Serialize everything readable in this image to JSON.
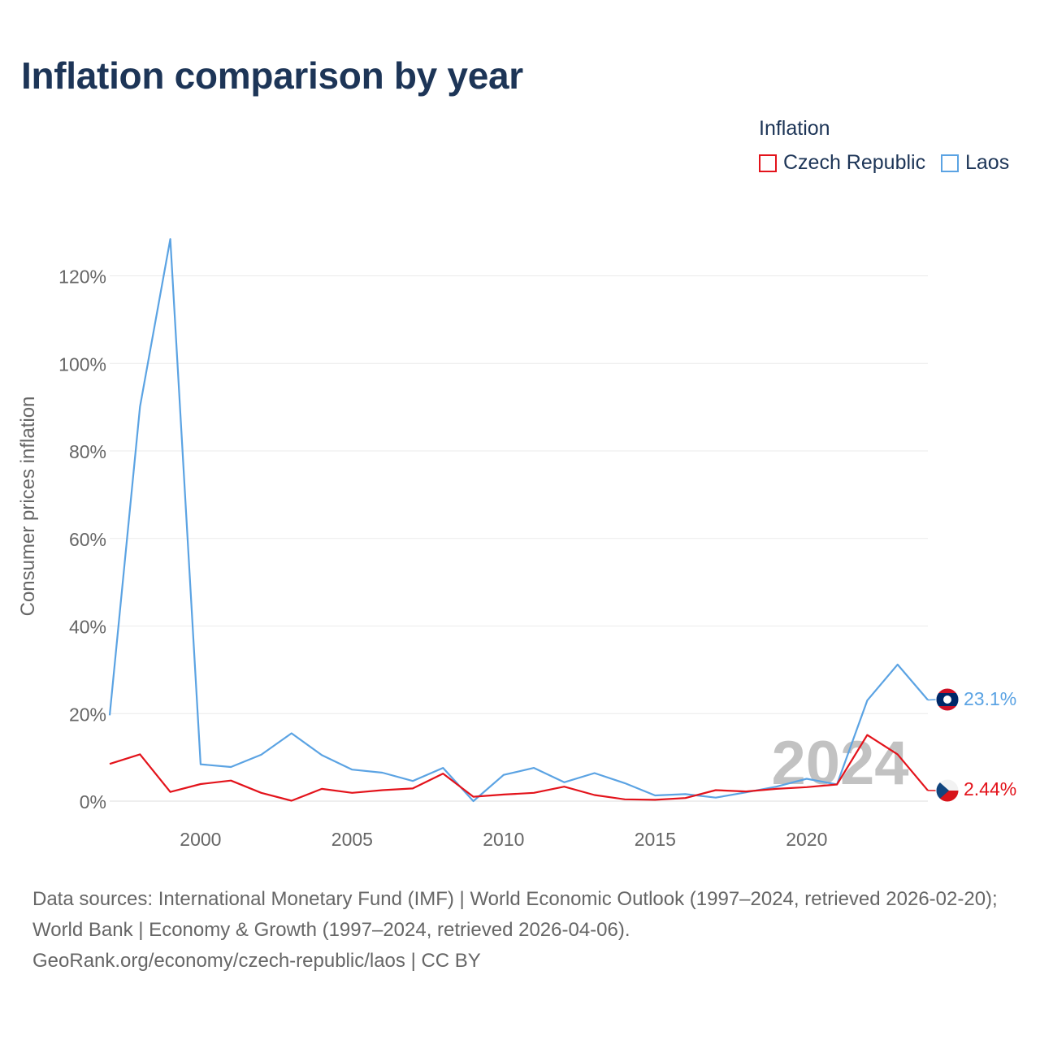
{
  "title": "Inflation comparison by year",
  "legend": {
    "title": "Inflation",
    "items": [
      {
        "label": "Czech Republic",
        "color": "#e3131b"
      },
      {
        "label": "Laos",
        "color": "#5ba3e3"
      }
    ]
  },
  "watermark_year": "2024",
  "end_labels": {
    "laos": "23.1%",
    "czech": "2.44%"
  },
  "footer": {
    "sources": "Data sources: International Monetary Fund (IMF) | World Economic Outlook (1997–2024, retrieved 2026-02-20); World Bank | Economy & Growth (1997–2024, retrieved 2026-04-06).",
    "link": "GeoRank.org/economy/czech-republic/laos | CC BY"
  },
  "chart_data": {
    "type": "line",
    "title": "Inflation comparison by year",
    "xlabel": "",
    "ylabel": "Consumer prices inflation",
    "x": [
      1997,
      1998,
      1999,
      2000,
      2001,
      2002,
      2003,
      2004,
      2005,
      2006,
      2007,
      2008,
      2009,
      2010,
      2011,
      2012,
      2013,
      2014,
      2015,
      2016,
      2017,
      2018,
      2019,
      2020,
      2021,
      2022,
      2023,
      2024
    ],
    "xlim": [
      1997,
      2024
    ],
    "ylim": [
      -5,
      128
    ],
    "x_ticks": [
      2000,
      2005,
      2010,
      2015,
      2020
    ],
    "y_ticks": [
      0,
      20,
      40,
      60,
      80,
      100,
      120
    ],
    "y_tick_labels": [
      "0%",
      "20%",
      "40%",
      "60%",
      "80%",
      "100%",
      "120%"
    ],
    "grid": true,
    "legend_position": "top-right",
    "series": [
      {
        "name": "Czech Republic",
        "color": "#e3131b",
        "values": [
          8.5,
          10.7,
          2.1,
          3.9,
          4.7,
          1.9,
          0.1,
          2.8,
          1.9,
          2.5,
          2.9,
          6.3,
          1.0,
          1.5,
          1.9,
          3.3,
          1.4,
          0.4,
          0.3,
          0.7,
          2.5,
          2.2,
          2.8,
          3.2,
          3.8,
          15.1,
          10.7,
          2.44
        ]
      },
      {
        "name": "Laos",
        "color": "#5ba3e3",
        "values": [
          19.6,
          90.1,
          128.4,
          8.4,
          7.8,
          10.6,
          15.5,
          10.5,
          7.2,
          6.5,
          4.6,
          7.6,
          0.0,
          6.0,
          7.6,
          4.3,
          6.4,
          4.1,
          1.3,
          1.6,
          0.8,
          2.0,
          3.3,
          5.1,
          3.8,
          23.0,
          31.2,
          23.1
        ]
      }
    ]
  }
}
